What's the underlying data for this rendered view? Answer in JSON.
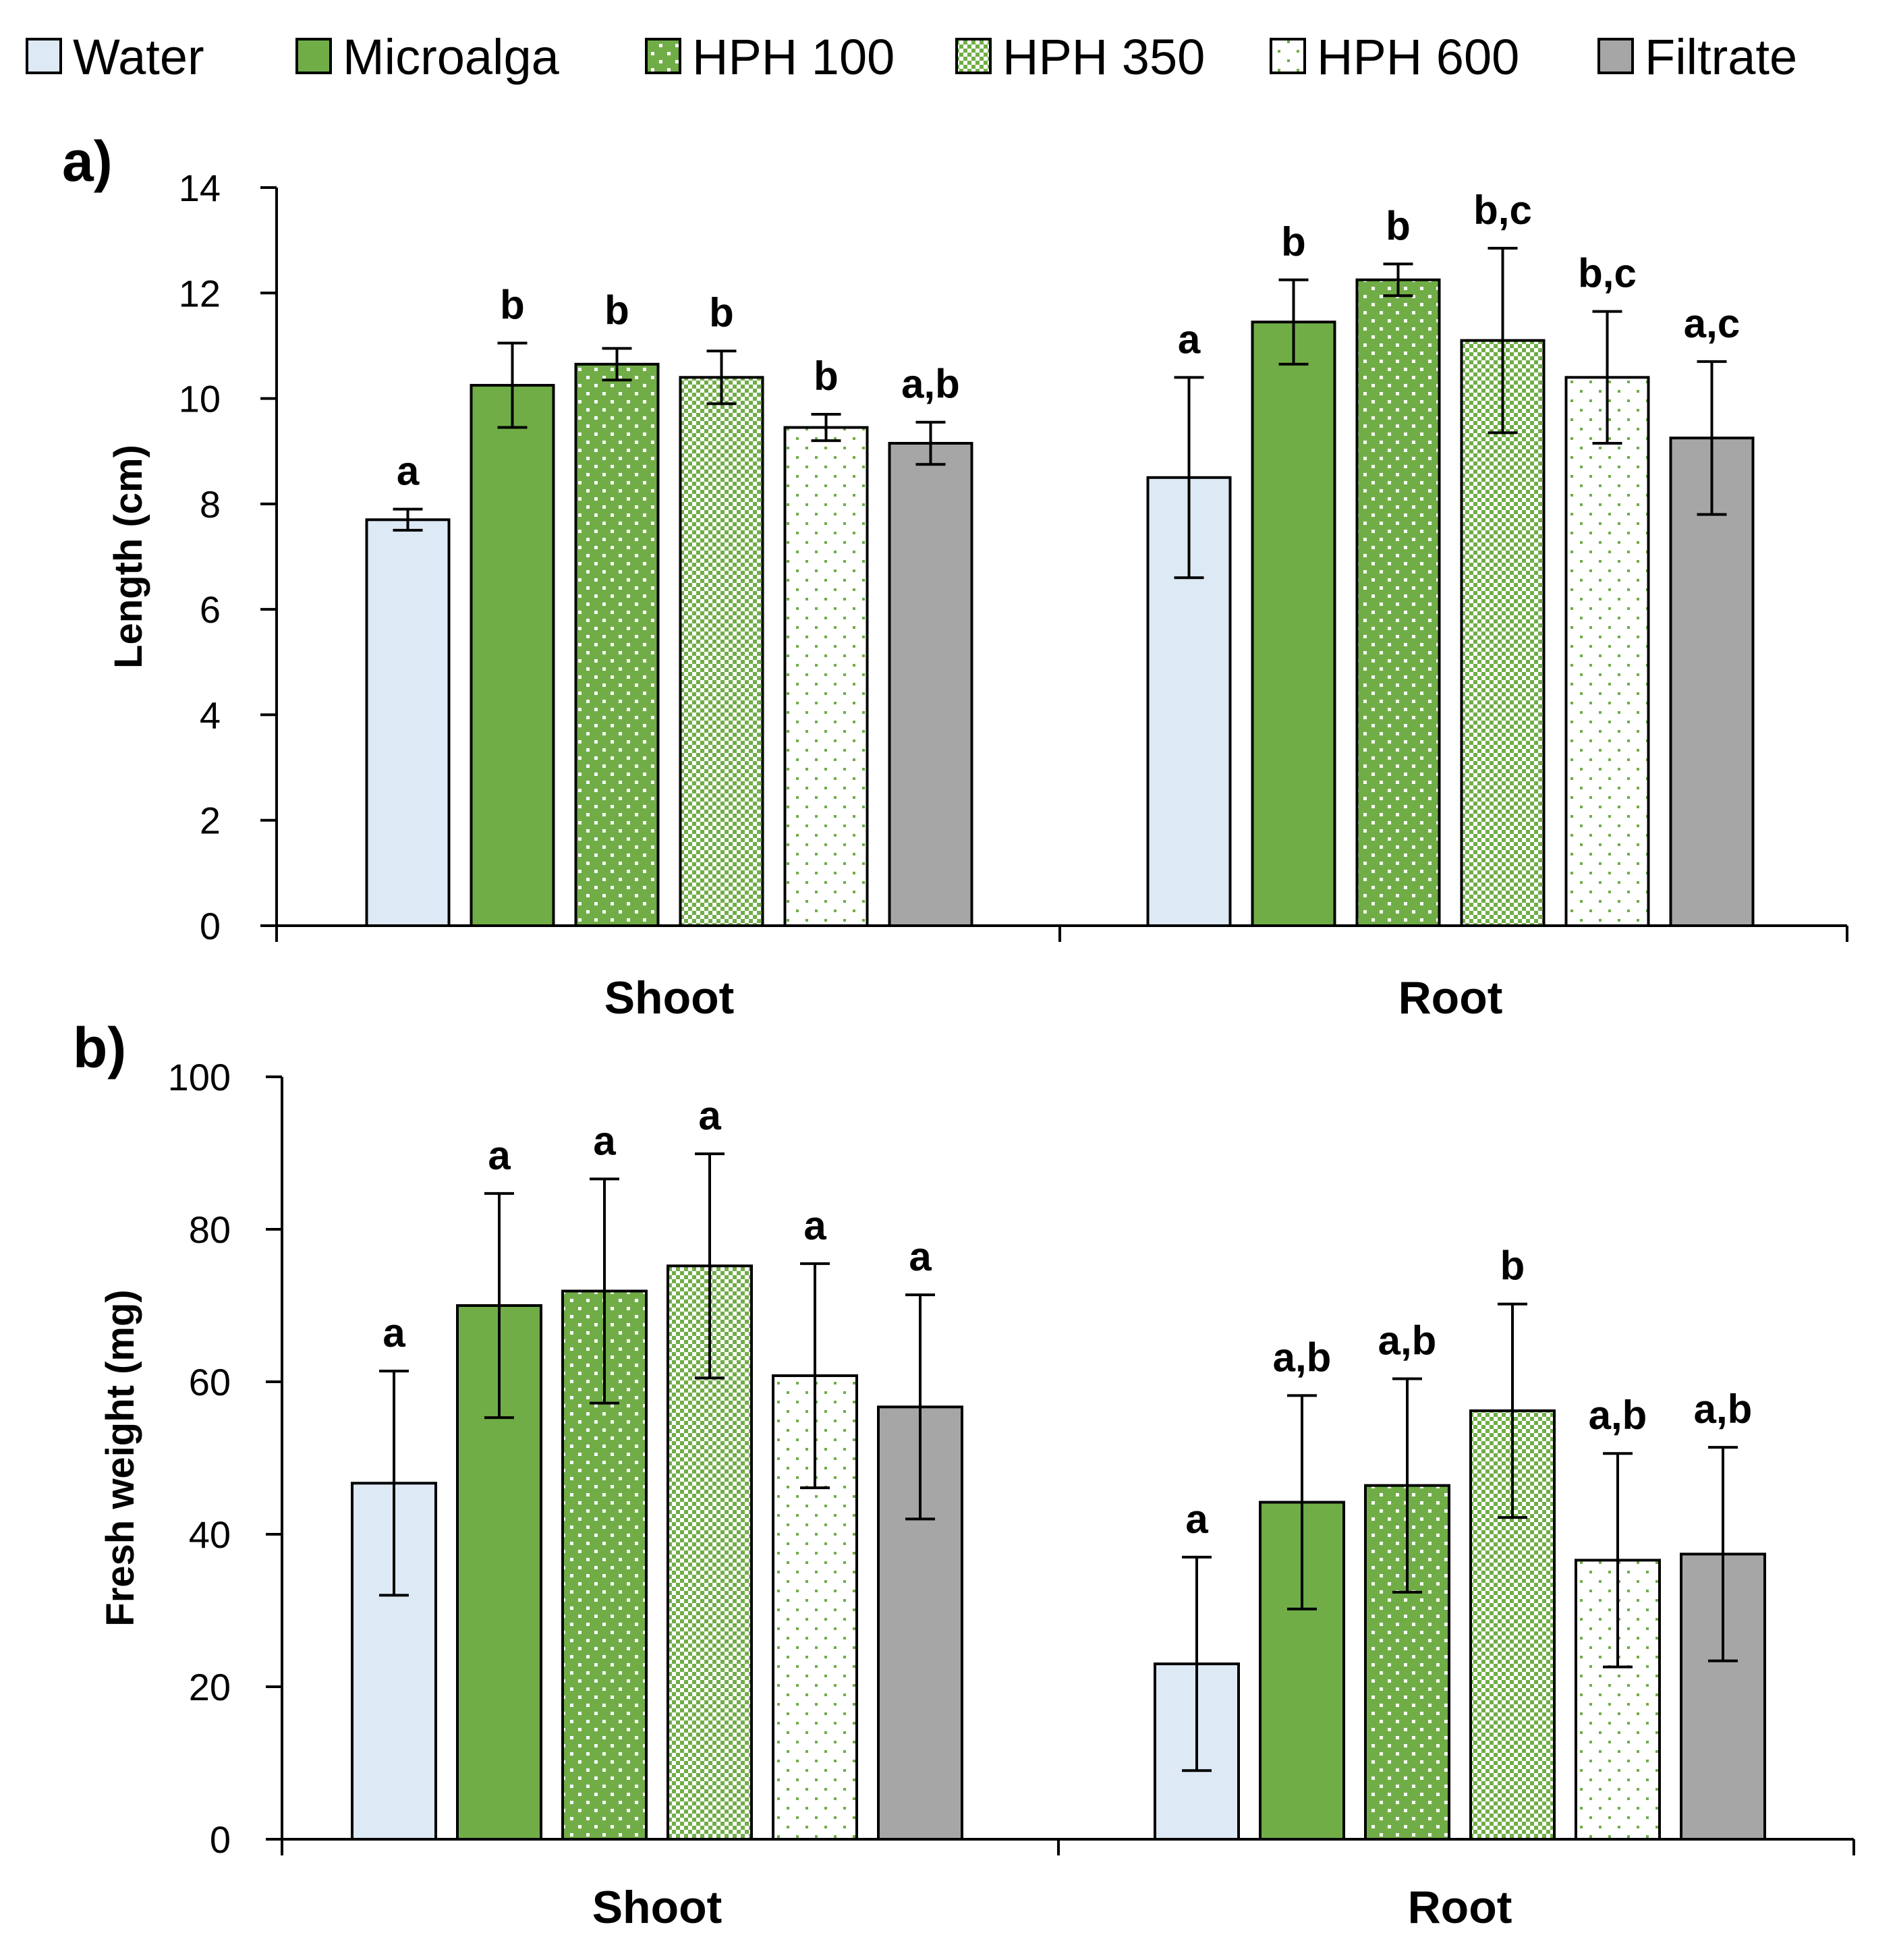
{
  "legend": [
    {
      "label": "Water",
      "pattern": "water"
    },
    {
      "label": "Microalga",
      "pattern": "microalga"
    },
    {
      "label": "HPH 100",
      "pattern": "hph100"
    },
    {
      "label": "HPH 350",
      "pattern": "hph350"
    },
    {
      "label": "HPH 600",
      "pattern": "hph600"
    },
    {
      "label": "Filtrate",
      "pattern": "filtrate"
    }
  ],
  "colors": {
    "water": "#dde9f5",
    "green": "#70ad47",
    "white": "#ffffff",
    "filtrate": "#a6a6a6",
    "stroke": "#000000"
  },
  "chart_data": [
    {
      "type": "bar",
      "panel_label": "a)",
      "title": "",
      "xlabel": "",
      "ylabel": "Length (cm)",
      "ylim": [
        0,
        14
      ],
      "yticks": [
        0,
        2,
        4,
        6,
        8,
        10,
        12,
        14
      ],
      "ytick_labels": [
        "0",
        "2",
        "4",
        "6",
        "8",
        "10",
        "12",
        "14"
      ],
      "categories": [
        "Shoot",
        "Root"
      ],
      "series": [
        {
          "name": "Water",
          "values": [
            7.7,
            8.5
          ],
          "errors": [
            0.2,
            1.9
          ],
          "letters": [
            "a",
            "a"
          ]
        },
        {
          "name": "Microalga",
          "values": [
            10.25,
            11.45
          ],
          "errors": [
            0.8,
            0.8
          ],
          "letters": [
            "b",
            "b"
          ]
        },
        {
          "name": "HPH 100",
          "values": [
            10.65,
            12.25
          ],
          "errors": [
            0.3,
            0.3
          ],
          "letters": [
            "b",
            "b"
          ]
        },
        {
          "name": "HPH 350",
          "values": [
            10.4,
            11.1
          ],
          "errors": [
            0.5,
            1.75
          ],
          "letters": [
            "b",
            "b,c"
          ]
        },
        {
          "name": "HPH 600",
          "values": [
            9.45,
            10.4
          ],
          "errors": [
            0.25,
            1.25
          ],
          "letters": [
            "b",
            "b,c"
          ]
        },
        {
          "name": "Filtrate",
          "values": [
            9.15,
            9.25
          ],
          "errors": [
            0.4,
            1.45
          ],
          "letters": [
            "a,b",
            "a,c"
          ]
        }
      ]
    },
    {
      "type": "bar",
      "panel_label": "b)",
      "title": "",
      "xlabel": "",
      "ylabel": "Fresh weight (mg)",
      "ylim": [
        0,
        100
      ],
      "yticks": [
        0,
        20,
        40,
        60,
        80,
        100
      ],
      "ytick_labels": [
        "0",
        "20",
        "40",
        "60",
        "80",
        "100"
      ],
      "categories": [
        "Shoot",
        "Root"
      ],
      "series": [
        {
          "name": "Water",
          "values": [
            46.7,
            23.0
          ],
          "errors": [
            14.7,
            14.0
          ],
          "letters": [
            "a",
            "a"
          ]
        },
        {
          "name": "Microalga",
          "values": [
            70.0,
            44.2
          ],
          "errors": [
            14.7,
            14.0
          ],
          "letters": [
            "a",
            "a,b"
          ]
        },
        {
          "name": "HPH 100",
          "values": [
            71.9,
            46.4
          ],
          "errors": [
            14.7,
            14.0
          ],
          "letters": [
            "a",
            "a,b"
          ]
        },
        {
          "name": "HPH 350",
          "values": [
            75.2,
            56.2
          ],
          "errors": [
            14.7,
            14.0
          ],
          "letters": [
            "a",
            "b"
          ]
        },
        {
          "name": "HPH 600",
          "values": [
            60.8,
            36.6
          ],
          "errors": [
            14.7,
            14.0
          ],
          "letters": [
            "a",
            "a,b"
          ]
        },
        {
          "name": "Filtrate",
          "values": [
            56.7,
            37.4
          ],
          "errors": [
            14.7,
            14.0
          ],
          "letters": [
            "a",
            "a,b"
          ]
        }
      ]
    }
  ]
}
